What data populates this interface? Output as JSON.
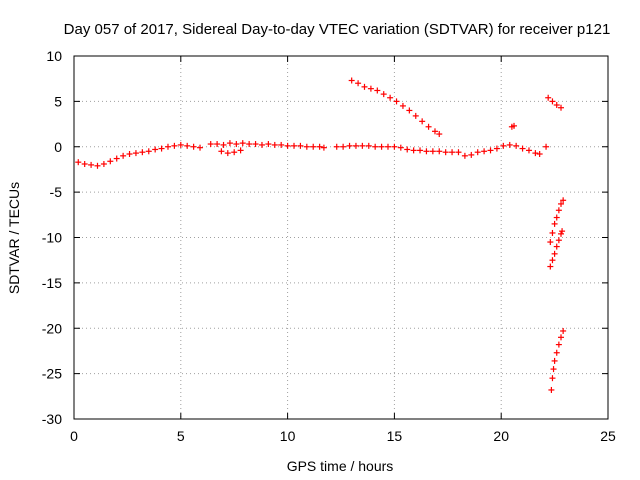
{
  "chart_data": {
    "type": "scatter",
    "title": "Day 057 of 2017, Sidereal Day-to-day VTEC variation (SDTVAR) for receiver p121",
    "xlabel": "GPS time / hours",
    "ylabel": "SDTVAR / TECUs",
    "xlim": [
      0,
      25
    ],
    "ylim": [
      -30,
      10
    ],
    "xticks": [
      0,
      5,
      10,
      15,
      20,
      25
    ],
    "yticks": [
      10,
      5,
      0,
      -5,
      -10,
      -15,
      -20,
      -25,
      -30
    ],
    "grid": true,
    "marker": "plus",
    "color": "#ff0000",
    "series": [
      {
        "values": [
          [
            0.2,
            -1.7
          ],
          [
            0.5,
            -1.9
          ],
          [
            0.8,
            -2.0
          ],
          [
            1.1,
            -2.1
          ],
          [
            1.4,
            -1.9
          ],
          [
            1.7,
            -1.6
          ],
          [
            2.0,
            -1.3
          ],
          [
            2.3,
            -1.0
          ],
          [
            2.6,
            -0.8
          ],
          [
            2.9,
            -0.7
          ],
          [
            3.2,
            -0.6
          ],
          [
            3.5,
            -0.5
          ],
          [
            3.8,
            -0.3
          ],
          [
            4.1,
            -0.2
          ],
          [
            4.4,
            0.0
          ],
          [
            4.7,
            0.1
          ],
          [
            5.0,
            0.2
          ],
          [
            5.3,
            0.1
          ],
          [
            5.6,
            0.0
          ],
          [
            5.9,
            -0.1
          ],
          [
            6.4,
            0.3
          ],
          [
            6.7,
            0.3
          ],
          [
            7.0,
            0.2
          ],
          [
            7.3,
            0.4
          ],
          [
            7.6,
            0.3
          ],
          [
            7.9,
            0.4
          ],
          [
            8.2,
            0.3
          ],
          [
            8.5,
            0.3
          ],
          [
            8.8,
            0.2
          ],
          [
            9.1,
            0.3
          ],
          [
            9.4,
            0.2
          ],
          [
            9.7,
            0.2
          ],
          [
            10.0,
            0.1
          ],
          [
            10.3,
            0.1
          ],
          [
            10.6,
            0.1
          ],
          [
            10.9,
            0.0
          ],
          [
            11.2,
            0.0
          ],
          [
            11.5,
            0.0
          ],
          [
            11.7,
            -0.1
          ],
          [
            6.9,
            -0.5
          ],
          [
            7.2,
            -0.7
          ],
          [
            7.5,
            -0.6
          ],
          [
            7.8,
            -0.4
          ],
          [
            12.3,
            0.0
          ],
          [
            12.6,
            0.0
          ],
          [
            12.9,
            0.1
          ],
          [
            13.2,
            0.1
          ],
          [
            13.5,
            0.1
          ],
          [
            13.8,
            0.1
          ],
          [
            14.1,
            0.0
          ],
          [
            14.4,
            0.0
          ],
          [
            14.7,
            0.0
          ],
          [
            15.0,
            0.0
          ],
          [
            15.3,
            -0.1
          ],
          [
            15.6,
            -0.3
          ],
          [
            15.9,
            -0.4
          ],
          [
            16.2,
            -0.4
          ],
          [
            16.5,
            -0.5
          ],
          [
            16.8,
            -0.5
          ],
          [
            17.1,
            -0.5
          ],
          [
            17.4,
            -0.6
          ],
          [
            17.7,
            -0.6
          ],
          [
            18.0,
            -0.6
          ],
          [
            18.3,
            -1.0
          ],
          [
            18.6,
            -0.9
          ],
          [
            18.9,
            -0.6
          ],
          [
            19.2,
            -0.5
          ],
          [
            19.5,
            -0.4
          ],
          [
            19.8,
            -0.2
          ],
          [
            20.1,
            0.1
          ],
          [
            20.4,
            0.2
          ],
          [
            20.7,
            0.1
          ],
          [
            21.0,
            -0.2
          ],
          [
            21.3,
            -0.4
          ],
          [
            21.6,
            -0.7
          ],
          [
            21.8,
            -0.8
          ],
          [
            20.5,
            2.2
          ],
          [
            20.6,
            2.3
          ],
          [
            22.1,
            0.0
          ],
          [
            13.0,
            7.3
          ],
          [
            13.3,
            7.0
          ],
          [
            13.6,
            6.6
          ],
          [
            13.9,
            6.4
          ],
          [
            14.2,
            6.2
          ],
          [
            14.5,
            5.8
          ],
          [
            14.8,
            5.4
          ],
          [
            15.1,
            5.0
          ],
          [
            15.4,
            4.5
          ],
          [
            15.7,
            4.0
          ],
          [
            16.0,
            3.4
          ],
          [
            16.3,
            2.8
          ],
          [
            16.6,
            2.2
          ],
          [
            16.9,
            1.7
          ],
          [
            17.1,
            1.4
          ],
          [
            22.2,
            5.4
          ],
          [
            22.4,
            5.0
          ],
          [
            22.6,
            4.6
          ],
          [
            22.8,
            4.3
          ],
          [
            22.3,
            -10.5
          ],
          [
            22.4,
            -9.5
          ],
          [
            22.5,
            -8.5
          ],
          [
            22.6,
            -7.8
          ],
          [
            22.7,
            -7.0
          ],
          [
            22.8,
            -6.3
          ],
          [
            22.9,
            -5.9
          ],
          [
            22.3,
            -13.2
          ],
          [
            22.4,
            -12.5
          ],
          [
            22.5,
            -11.8
          ],
          [
            22.6,
            -11.0
          ],
          [
            22.7,
            -10.3
          ],
          [
            22.8,
            -9.6
          ],
          [
            22.85,
            -9.3
          ],
          [
            22.35,
            -26.8
          ],
          [
            22.4,
            -25.5
          ],
          [
            22.45,
            -24.5
          ],
          [
            22.5,
            -23.6
          ],
          [
            22.6,
            -22.7
          ],
          [
            22.7,
            -21.8
          ],
          [
            22.8,
            -21.0
          ],
          [
            22.9,
            -20.3
          ]
        ]
      }
    ]
  }
}
